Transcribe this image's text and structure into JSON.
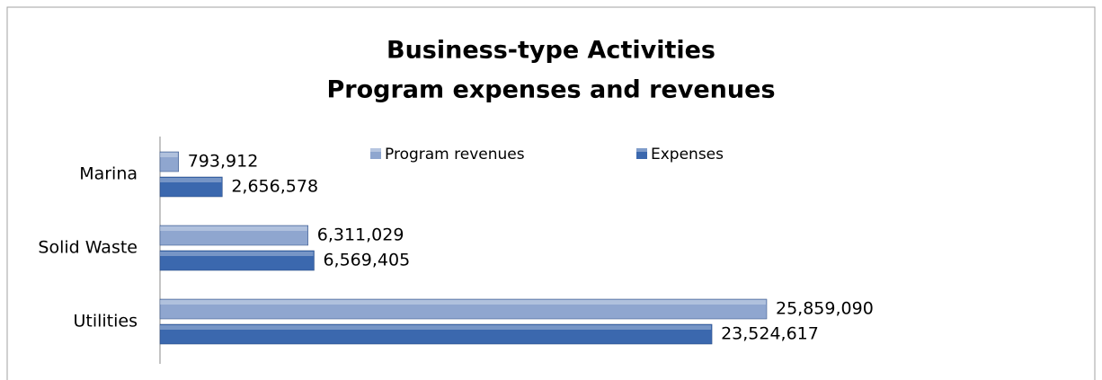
{
  "chart_data": {
    "type": "bar",
    "orientation": "horizontal",
    "title": "Business-type Activities",
    "subtitle": "Program expenses and revenues",
    "categories": [
      "Marina",
      "Solid Waste",
      "Utilities"
    ],
    "series": [
      {
        "name": "Program revenues",
        "color": "#8fa6cf",
        "values": [
          793912,
          6311029,
          25859090
        ],
        "value_labels": [
          "793,912",
          "6,311,029",
          "25,859,090"
        ]
      },
      {
        "name": "Expenses",
        "color": "#3b68ae",
        "values": [
          2656578,
          6569405,
          23524617
        ],
        "value_labels": [
          "2,656,578",
          "6,569,405",
          "23,524,617"
        ]
      }
    ],
    "legend": "top"
  }
}
